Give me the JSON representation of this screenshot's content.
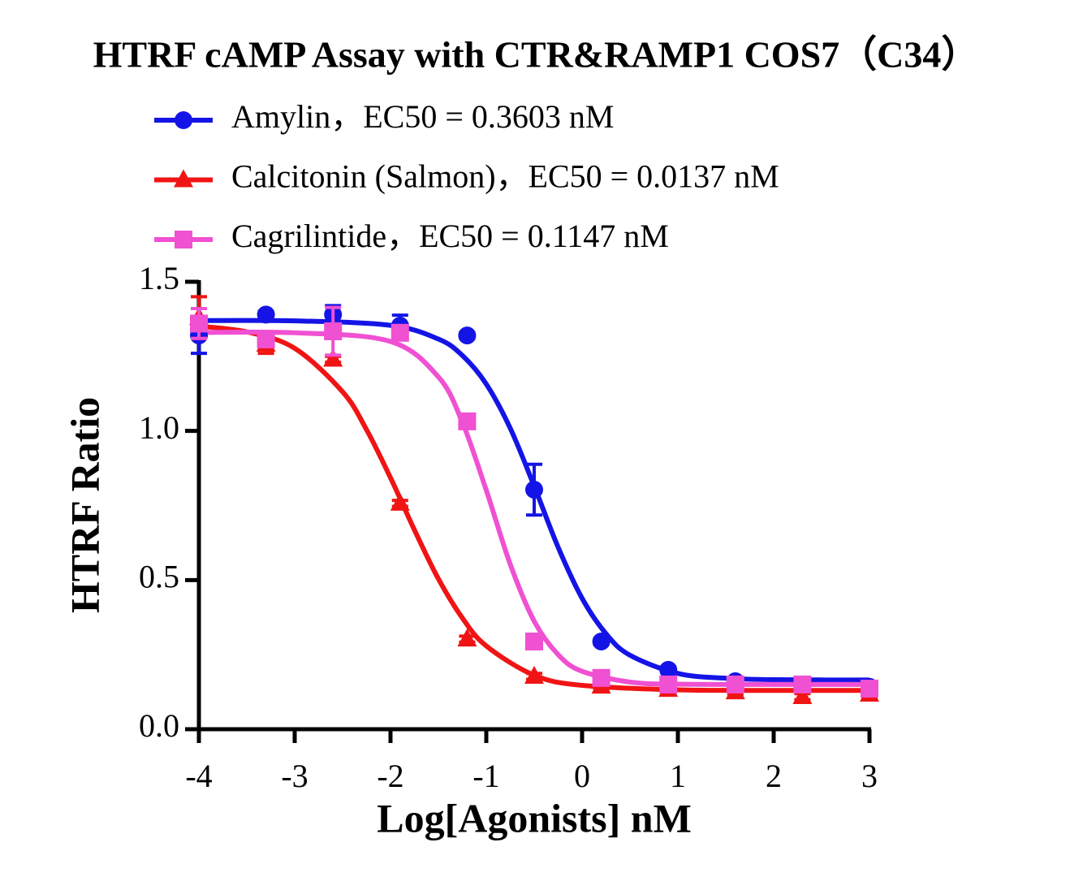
{
  "chart_data": {
    "type": "dose-response",
    "title": "HTRF cAMP Assay with CTR&RAMP1 COS7（C34）",
    "x_label": "Log[Agonists] nM",
    "y_label": "HTRF Ratio",
    "xlim": [
      -4,
      3
    ],
    "xticks": [
      -4,
      -3,
      -2,
      -1,
      0,
      1,
      2,
      3
    ],
    "ylim": [
      0,
      1.5
    ],
    "yticks": [
      {
        "value": 0,
        "label": "0.0"
      },
      0.5,
      {
        "value": 1,
        "label": "1.0"
      },
      1.5
    ],
    "series": [
      {
        "name": "Amylin，EC50 = 0.3603 nM",
        "color": "#1414e6",
        "marker": "circle",
        "x": [
          -4,
          -3.3,
          -2.6,
          -1.9,
          -1.2,
          -0.5,
          0.2,
          0.9,
          1.6,
          2.3,
          3
        ],
        "values": [
          1.32,
          1.39,
          1.39,
          1.353,
          1.32,
          0.803,
          0.294,
          0.199,
          0.161,
          0.147,
          0.142
        ],
        "errors": [
          0.06,
          0.01,
          0.03,
          0.035,
          0.01,
          0.085,
          0.01,
          0.01,
          0.01,
          0.01,
          0.01
        ],
        "curve": {
          "x": [
            -4,
            -3,
            -2,
            -1.5,
            -1.25,
            -1,
            -0.75,
            -0.5,
            -0.25,
            0,
            0.25,
            0.5,
            1,
            1.5,
            2,
            3
          ],
          "values": [
            1.37,
            1.369,
            1.354,
            1.308,
            1.253,
            1.157,
            1.009,
            0.815,
            0.61,
            0.439,
            0.32,
            0.248,
            0.187,
            0.171,
            0.166,
            0.165
          ]
        }
      },
      {
        "name": "Calcitonin (Salmon)，EC50 = 0.0137 nM",
        "color": "#f01414",
        "marker": "triangle",
        "x": [
          -4,
          -3.3,
          -2.6,
          -1.9,
          -1.2,
          -0.5,
          0.2,
          0.9,
          1.6,
          2.3,
          3
        ],
        "values": [
          1.38,
          1.29,
          1.24,
          0.757,
          0.302,
          0.177,
          0.144,
          0.133,
          0.125,
          0.109,
          0.117
        ],
        "errors": [
          0.07,
          0.03,
          0.01,
          0.01,
          0.01,
          0.01,
          0.01,
          0.01,
          0.01,
          0.01,
          0.01
        ],
        "curve": {
          "x": [
            -4,
            -3.5,
            -3,
            -2.5,
            -2.25,
            -2,
            -1.75,
            -1.5,
            -1.25,
            -1,
            -0.5,
            0,
            1,
            2,
            3
          ],
          "values": [
            1.351,
            1.332,
            1.277,
            1.131,
            1.004,
            0.843,
            0.668,
            0.504,
            0.373,
            0.279,
            0.181,
            0.147,
            0.132,
            0.13,
            0.13
          ]
        }
      },
      {
        "name": "Cagrilintide，EC50 = 0.1147 nM",
        "color": "#f050d2",
        "marker": "square",
        "x": [
          -4,
          -3.3,
          -2.6,
          -1.9,
          -1.2,
          -0.5,
          0.2,
          0.9,
          1.6,
          2.3,
          3
        ],
        "values": [
          1.36,
          1.307,
          1.334,
          1.329,
          1.032,
          0.294,
          0.172,
          0.15,
          0.15,
          0.15,
          0.136
        ],
        "errors": [
          0.05,
          0.02,
          0.08,
          0.02,
          0.01,
          0.01,
          0.01,
          0.01,
          0.01,
          0.01,
          0.01
        ],
        "curve": {
          "x": [
            -4,
            -3,
            -2,
            -1.5,
            -1.25,
            -1,
            -0.75,
            -0.5,
            -0.25,
            0,
            0.5,
            1,
            2,
            3
          ],
          "values": [
            1.33,
            1.329,
            1.3,
            1.181,
            1.029,
            0.801,
            0.553,
            0.362,
            0.25,
            0.194,
            0.158,
            0.151,
            0.15,
            0.15
          ]
        }
      }
    ]
  }
}
